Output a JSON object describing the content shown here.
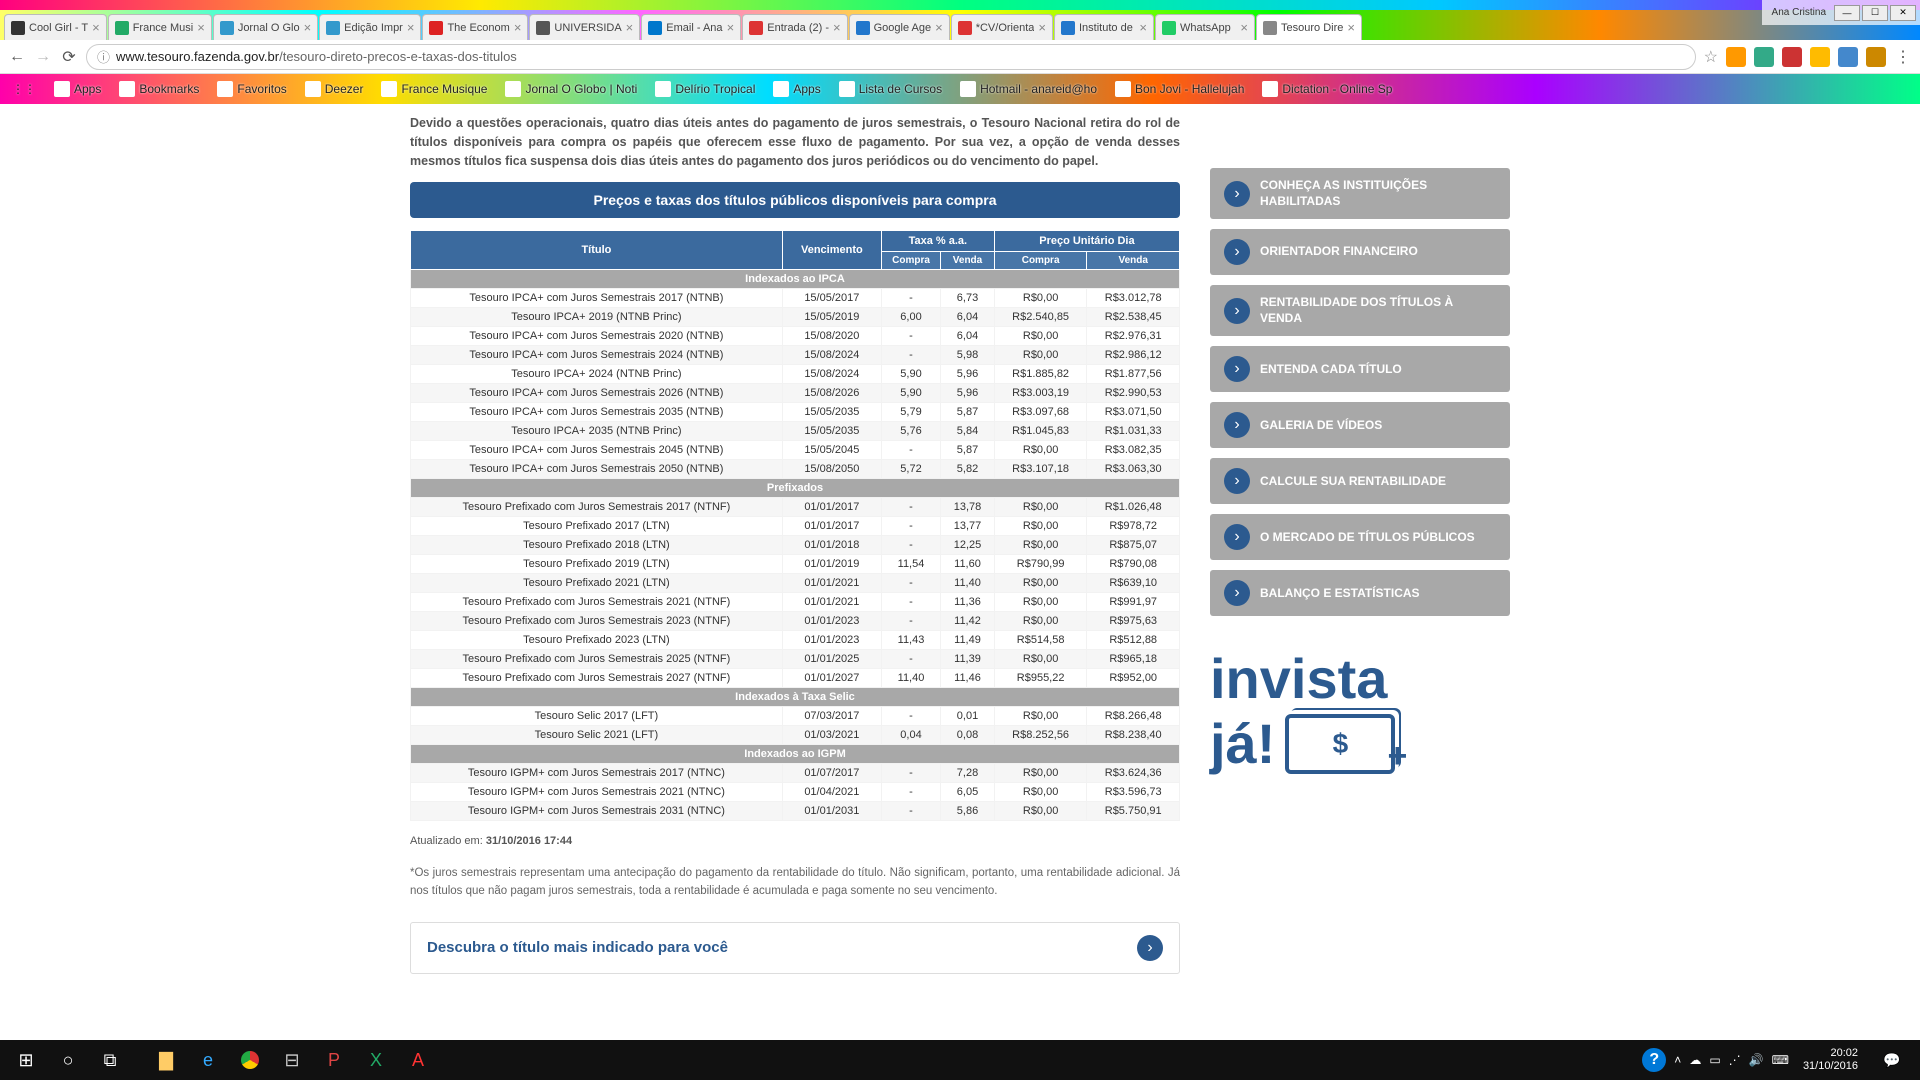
{
  "window": {
    "user": "Ana Cristina",
    "tabs": [
      {
        "label": "Cool Girl - T",
        "fav": "#333"
      },
      {
        "label": "France Musi",
        "fav": "#2a6"
      },
      {
        "label": "Jornal O Glo",
        "fav": "#39c"
      },
      {
        "label": "Edição Impr",
        "fav": "#39c"
      },
      {
        "label": "The Econom",
        "fav": "#d22"
      },
      {
        "label": "UNIVERSIDA",
        "fav": "#555"
      },
      {
        "label": "Email - Ana",
        "fav": "#07c"
      },
      {
        "label": "Entrada (2) -",
        "fav": "#d33"
      },
      {
        "label": "Google Age",
        "fav": "#27c"
      },
      {
        "label": "*CV/Orienta",
        "fav": "#d33"
      },
      {
        "label": "Instituto de",
        "fav": "#27c"
      },
      {
        "label": "WhatsApp",
        "fav": "#2c6"
      },
      {
        "label": "Tesouro Dire",
        "fav": "#888",
        "active": true
      }
    ],
    "url_host": "www.tesouro.fazenda.gov.br",
    "url_path": "/tesouro-direto-precos-e-taxas-dos-titulos"
  },
  "bookmarks": [
    {
      "label": "Apps"
    },
    {
      "label": "Bookmarks"
    },
    {
      "label": "Favoritos"
    },
    {
      "label": "Deezer"
    },
    {
      "label": "France Musique"
    },
    {
      "label": "Jornal O Globo | Noti"
    },
    {
      "label": "Delírio Tropical"
    },
    {
      "label": "Apps"
    },
    {
      "label": "Lista de Cursos"
    },
    {
      "label": "Hotmail - anareid@ho"
    },
    {
      "label": "Bon Jovi - Hallelujah"
    },
    {
      "label": "Dictation - Online Sp"
    }
  ],
  "page": {
    "intro": "Devido a questões operacionais, quatro dias úteis antes do pagamento de juros semestrais, o Tesouro Nacional retira do rol de títulos disponíveis para compra os papéis que oferecem esse fluxo de pagamento. Por sua vez, a opção de venda desses mesmos títulos fica suspensa dois dias úteis antes do pagamento dos juros periódicos ou do vencimento do papel.",
    "blue_header": "Preços e taxas dos títulos públicos disponíveis para compra",
    "th_titulo": "Título",
    "th_venc": "Vencimento",
    "th_taxa": "Taxa % a.a.",
    "th_preco": "Preço Unitário Dia",
    "th_compra": "Compra",
    "th_venda": "Venda",
    "cat1": "Indexados ao IPCA",
    "cat2": "Prefixados",
    "cat3": "Indexados à Taxa Selic",
    "cat4": "Indexados ao IGPM",
    "rows_ipca": [
      [
        "Tesouro IPCA+ com Juros Semestrais 2017 (NTNB)",
        "15/05/2017",
        "-",
        "6,73",
        "R$0,00",
        "R$3.012,78"
      ],
      [
        "Tesouro IPCA+ 2019 (NTNB Princ)",
        "15/05/2019",
        "6,00",
        "6,04",
        "R$2.540,85",
        "R$2.538,45"
      ],
      [
        "Tesouro IPCA+ com Juros Semestrais 2020 (NTNB)",
        "15/08/2020",
        "-",
        "6,04",
        "R$0,00",
        "R$2.976,31"
      ],
      [
        "Tesouro IPCA+ com Juros Semestrais 2024 (NTNB)",
        "15/08/2024",
        "-",
        "5,98",
        "R$0,00",
        "R$2.986,12"
      ],
      [
        "Tesouro IPCA+ 2024 (NTNB Princ)",
        "15/08/2024",
        "5,90",
        "5,96",
        "R$1.885,82",
        "R$1.877,56"
      ],
      [
        "Tesouro IPCA+ com Juros Semestrais 2026 (NTNB)",
        "15/08/2026",
        "5,90",
        "5,96",
        "R$3.003,19",
        "R$2.990,53"
      ],
      [
        "Tesouro IPCA+ com Juros Semestrais 2035 (NTNB)",
        "15/05/2035",
        "5,79",
        "5,87",
        "R$3.097,68",
        "R$3.071,50"
      ],
      [
        "Tesouro IPCA+ 2035 (NTNB Princ)",
        "15/05/2035",
        "5,76",
        "5,84",
        "R$1.045,83",
        "R$1.031,33"
      ],
      [
        "Tesouro IPCA+ com Juros Semestrais 2045 (NTNB)",
        "15/05/2045",
        "-",
        "5,87",
        "R$0,00",
        "R$3.082,35"
      ],
      [
        "Tesouro IPCA+ com Juros Semestrais 2050 (NTNB)",
        "15/08/2050",
        "5,72",
        "5,82",
        "R$3.107,18",
        "R$3.063,30"
      ]
    ],
    "rows_pre": [
      [
        "Tesouro Prefixado com Juros Semestrais 2017 (NTNF)",
        "01/01/2017",
        "-",
        "13,78",
        "R$0,00",
        "R$1.026,48"
      ],
      [
        "Tesouro Prefixado 2017 (LTN)",
        "01/01/2017",
        "-",
        "13,77",
        "R$0,00",
        "R$978,72"
      ],
      [
        "Tesouro Prefixado 2018 (LTN)",
        "01/01/2018",
        "-",
        "12,25",
        "R$0,00",
        "R$875,07"
      ],
      [
        "Tesouro Prefixado 2019 (LTN)",
        "01/01/2019",
        "11,54",
        "11,60",
        "R$790,99",
        "R$790,08"
      ],
      [
        "Tesouro Prefixado 2021 (LTN)",
        "01/01/2021",
        "-",
        "11,40",
        "R$0,00",
        "R$639,10"
      ],
      [
        "Tesouro Prefixado com Juros Semestrais 2021 (NTNF)",
        "01/01/2021",
        "-",
        "11,36",
        "R$0,00",
        "R$991,97"
      ],
      [
        "Tesouro Prefixado com Juros Semestrais 2023 (NTNF)",
        "01/01/2023",
        "-",
        "11,42",
        "R$0,00",
        "R$975,63"
      ],
      [
        "Tesouro Prefixado 2023 (LTN)",
        "01/01/2023",
        "11,43",
        "11,49",
        "R$514,58",
        "R$512,88"
      ],
      [
        "Tesouro Prefixado com Juros Semestrais 2025 (NTNF)",
        "01/01/2025",
        "-",
        "11,39",
        "R$0,00",
        "R$965,18"
      ],
      [
        "Tesouro Prefixado com Juros Semestrais 2027 (NTNF)",
        "01/01/2027",
        "11,40",
        "11,46",
        "R$955,22",
        "R$952,00"
      ]
    ],
    "rows_selic": [
      [
        "Tesouro Selic 2017 (LFT)",
        "07/03/2017",
        "-",
        "0,01",
        "R$0,00",
        "R$8.266,48"
      ],
      [
        "Tesouro Selic 2021 (LFT)",
        "01/03/2021",
        "0,04",
        "0,08",
        "R$8.252,56",
        "R$8.238,40"
      ]
    ],
    "rows_igpm": [
      [
        "Tesouro IGPM+ com Juros Semestrais 2017 (NTNC)",
        "01/07/2017",
        "-",
        "7,28",
        "R$0,00",
        "R$3.624,36"
      ],
      [
        "Tesouro IGPM+ com Juros Semestrais 2021 (NTNC)",
        "01/04/2021",
        "-",
        "6,05",
        "R$0,00",
        "R$3.596,73"
      ],
      [
        "Tesouro IGPM+ com Juros Semestrais 2031 (NTNC)",
        "01/01/2031",
        "-",
        "5,86",
        "R$0,00",
        "R$5.750,91"
      ]
    ],
    "updated_label": "Atualizado em:",
    "updated_value": "31/10/2016 17:44",
    "footnote": "*Os juros semestrais representam uma antecipação do pagamento da rentabilidade do título. Não significam, portanto, uma rentabilidade adicional. Já nos títulos que não pagam juros semestrais, toda a rentabilidade é acumulada e paga somente no seu vencimento.",
    "discover": "Descubra o título mais indicado para você"
  },
  "sidelinks": [
    "CONHEÇA AS INSTITUIÇÕES HABILITADAS",
    "ORIENTADOR FINANCEIRO",
    "RENTABILIDADE DOS TÍTULOS À VENDA",
    "ENTENDA CADA TÍTULO",
    "GALERIA DE VÍDEOS",
    "CALCULE SUA RENTABILIDADE",
    "O MERCADO DE TÍTULOS PÚBLICOS",
    "BALANÇO E ESTATÍSTICAS"
  ],
  "invista_l1": "invista",
  "invista_l2": "já!",
  "taskbar": {
    "time": "20:02",
    "date": "31/10/2016"
  }
}
